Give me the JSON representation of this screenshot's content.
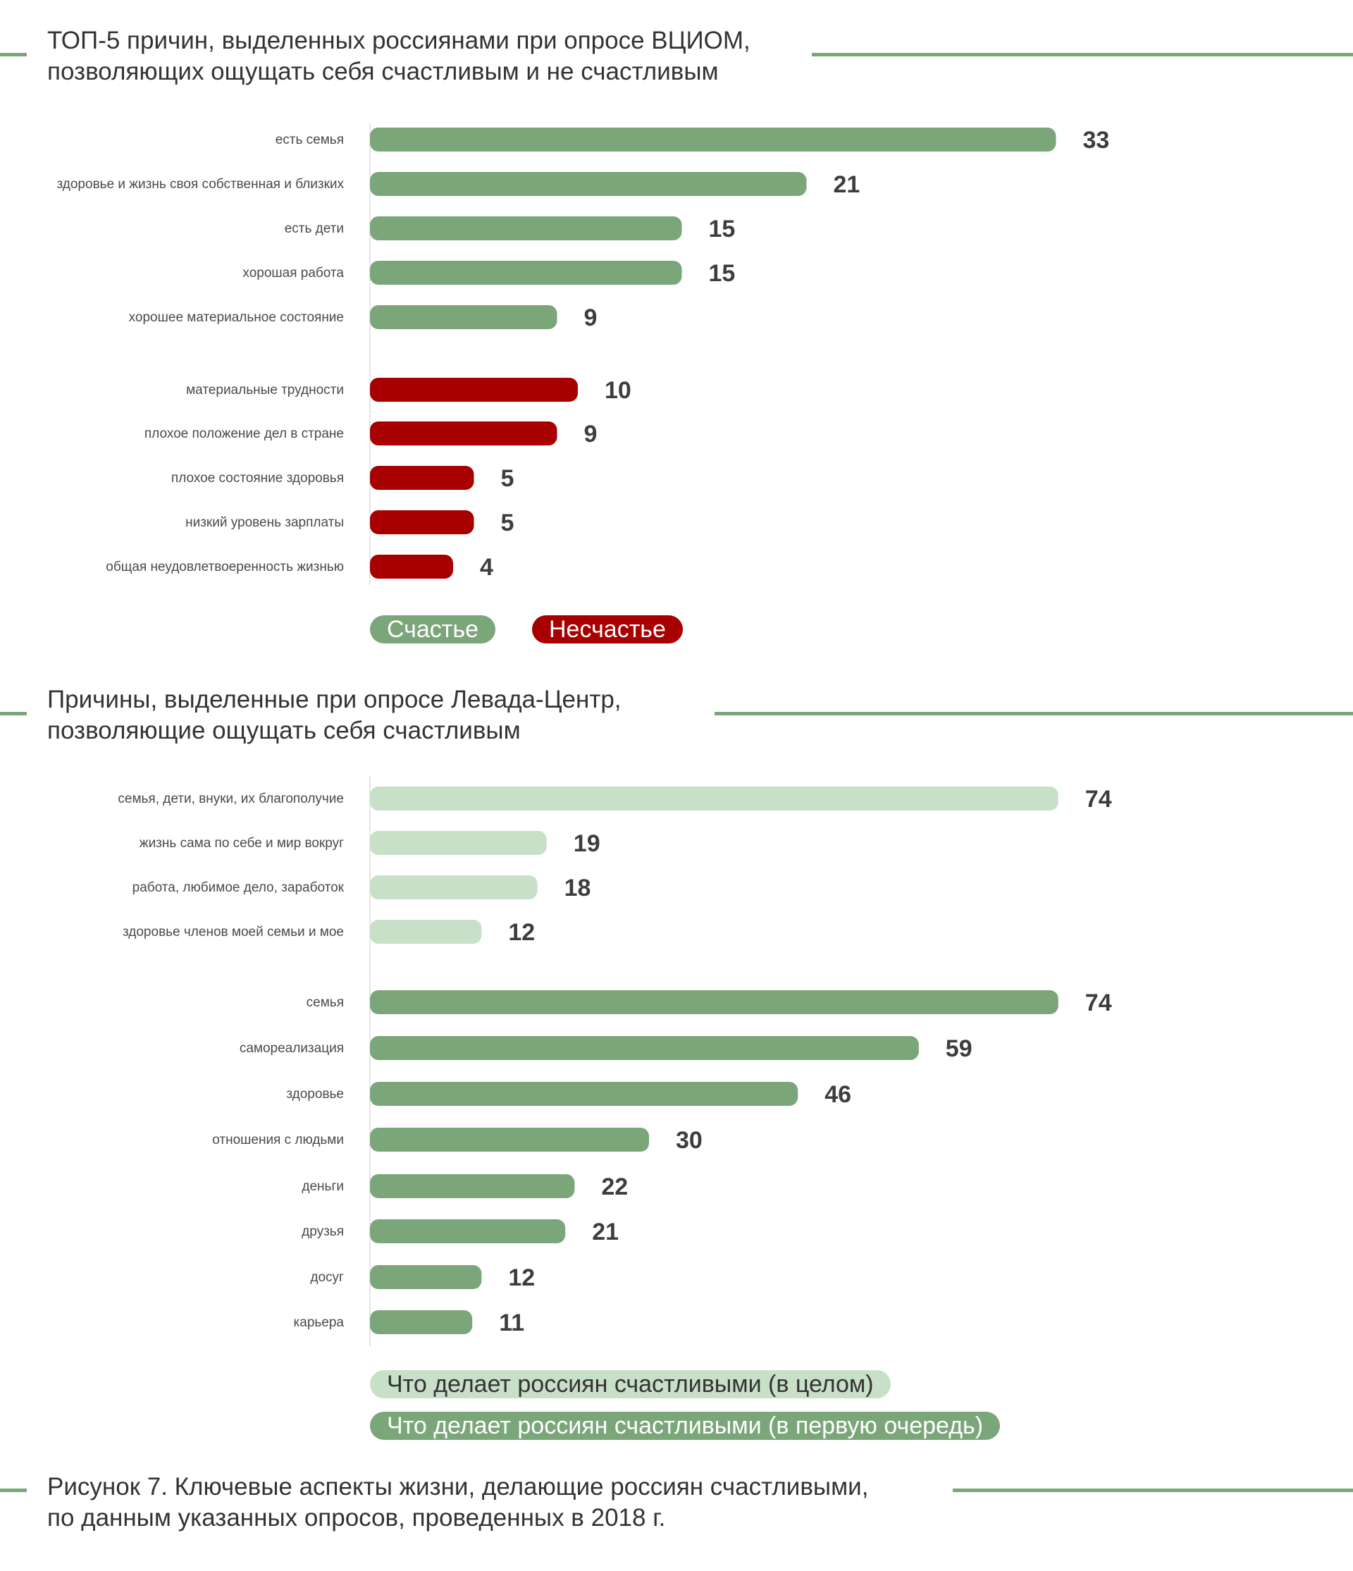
{
  "colors": {
    "happy": "#7aa67a",
    "unhappy": "#a80000",
    "light": "#c8dfc8",
    "rule": "#7aa67a",
    "text": "#333333"
  },
  "vciom": {
    "title_line1": "ТОП-5 причин, выделенных россиянами при опросе ВЦИОМ,",
    "title_line2": "позволяющих ощущать себя счастливым и не счастливым",
    "legend_happy": "Счастье",
    "legend_unhappy": "Несчастье"
  },
  "levada": {
    "title_line1": "Причины, выделенные при опросе Левада-Центр,",
    "title_line2": "позволяющие ощущать себя счастливым",
    "legend_general": "Что делает россиян счастливыми (в целом)",
    "legend_first": "Что делает россиян счастливыми (в первую очередь)"
  },
  "caption": {
    "line1": "Рисунок 7. Ключевые аспекты жизни, делающие россиян счастливыми,",
    "line2": "по данным указанных опросов, проведенных в 2018 г."
  },
  "chart_data": [
    {
      "type": "bar",
      "orientation": "horizontal",
      "title": "ТОП-5 причин, выделенных россиянами при опросе ВЦИОМ, позволяющих ощущать себя счастливым и не счастливым",
      "series": [
        {
          "name": "Счастье",
          "color": "#7aa67a",
          "categories": [
            "есть семья",
            "здоровье и жизнь своя собственная и близких",
            "есть дети",
            "хорошая работа",
            "хорошее материальное состояние"
          ],
          "values": [
            33,
            21,
            15,
            15,
            9
          ]
        },
        {
          "name": "Несчастье",
          "color": "#a80000",
          "categories": [
            "материальные трудности",
            "плохое положение дел в стране",
            "плохое состояние здоровья",
            "низкий уровень зарплаты",
            "общая неудовлетвоеренность жизнью"
          ],
          "values": [
            10,
            9,
            5,
            5,
            4
          ]
        }
      ]
    },
    {
      "type": "bar",
      "orientation": "horizontal",
      "title": "Причины, выделенные при опросе Левада-Центр, позволяющие ощущать себя счастливым",
      "series": [
        {
          "name": "Что делает россиян счастливыми (в целом)",
          "color": "#c8dfc8",
          "categories": [
            "семья, дети, внуки, их благополучие",
            "жизнь сама по себе и мир вокруг",
            "работа, любимое дело, заработок",
            "здоровье членов моей семьи и мое"
          ],
          "values": [
            74,
            19,
            18,
            12
          ]
        },
        {
          "name": "Что делает россиян счастливыми (в первую очередь)",
          "color": "#7aa67a",
          "categories": [
            "семья",
            "самореализация",
            "здоровье",
            "отношения с людьми",
            "деньги",
            "друзья",
            "досуг",
            "карьера"
          ],
          "values": [
            74,
            59,
            46,
            30,
            22,
            21,
            12,
            11
          ]
        }
      ]
    }
  ]
}
